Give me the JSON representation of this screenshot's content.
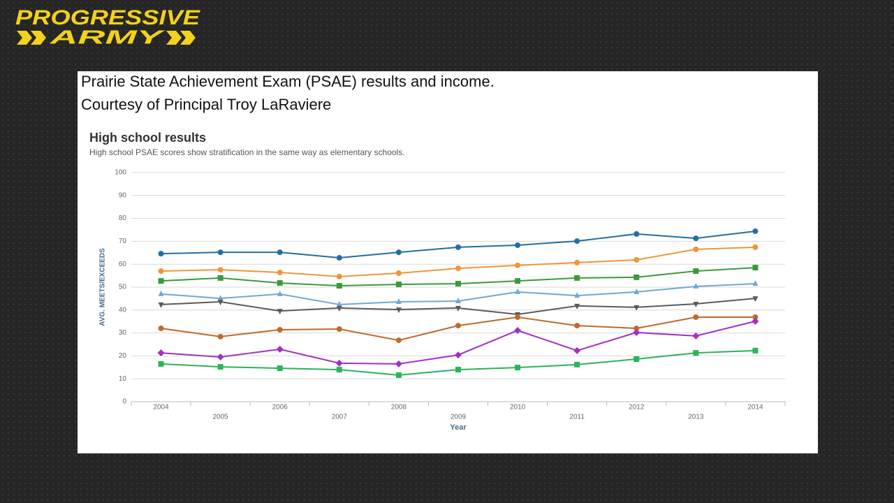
{
  "logo": {
    "line1": "PROGRESSIVE",
    "line2": "ARMY"
  },
  "caption": [
    "Prairie State Achievement Exam (PSAE) results and income.",
    "Courtesy of Principal Troy LaRaviere"
  ],
  "chart_data": {
    "type": "line",
    "title": "High school results",
    "subtitle": "High school PSAE scores show stratification in the same way as elementary schools.",
    "y_label": "AVG. MEETS/EXCEEDS",
    "x_label": "Year",
    "categories": [
      "2004",
      "2005",
      "2006",
      "2007",
      "2008",
      "2009",
      "2010",
      "2011",
      "2012",
      "2013",
      "2014"
    ],
    "ylim": [
      0,
      100
    ],
    "yticks": [
      0,
      10,
      20,
      30,
      40,
      50,
      60,
      70,
      80,
      90,
      100
    ],
    "grid": true,
    "series": [
      {
        "color": "#236ea0",
        "marker": "circle",
        "values": [
          64.6,
          65.2,
          65.2,
          62.8,
          65.2,
          67.4,
          68.3,
          70.1,
          73.2,
          71.3,
          74.4
        ]
      },
      {
        "color": "#f0953a",
        "marker": "circle",
        "values": [
          57.0,
          57.6,
          56.4,
          54.6,
          56.1,
          58.2,
          59.5,
          60.7,
          61.9,
          66.5,
          67.4
        ]
      },
      {
        "color": "#3a9a3a",
        "marker": "square",
        "values": [
          52.7,
          54.0,
          51.8,
          50.6,
          51.2,
          51.5,
          52.7,
          54.0,
          54.3,
          57.0,
          58.5
        ]
      },
      {
        "color": "#6fa8d6",
        "marker": "triangle",
        "values": [
          47.0,
          45.1,
          47.0,
          42.4,
          43.6,
          43.9,
          47.9,
          46.3,
          47.9,
          50.3,
          51.5
        ]
      },
      {
        "color": "#5a5a5a",
        "marker": "triangle-down",
        "values": [
          42.4,
          43.6,
          39.6,
          40.9,
          40.2,
          40.9,
          38.1,
          41.8,
          41.2,
          42.7,
          45.1
        ]
      },
      {
        "color": "#c0692a",
        "marker": "circle",
        "values": [
          32.0,
          28.4,
          31.4,
          31.7,
          26.8,
          33.2,
          36.9,
          33.2,
          32.0,
          36.9,
          36.9
        ]
      },
      {
        "color": "#a030c8",
        "marker": "diamond",
        "values": [
          21.3,
          19.5,
          22.9,
          16.8,
          16.5,
          20.4,
          31.1,
          22.3,
          30.2,
          28.7,
          35.1
        ]
      },
      {
        "color": "#2bb35a",
        "marker": "square",
        "values": [
          16.5,
          15.2,
          14.6,
          14.0,
          11.6,
          14.0,
          14.9,
          16.2,
          18.6,
          21.3,
          22.3
        ]
      }
    ]
  }
}
